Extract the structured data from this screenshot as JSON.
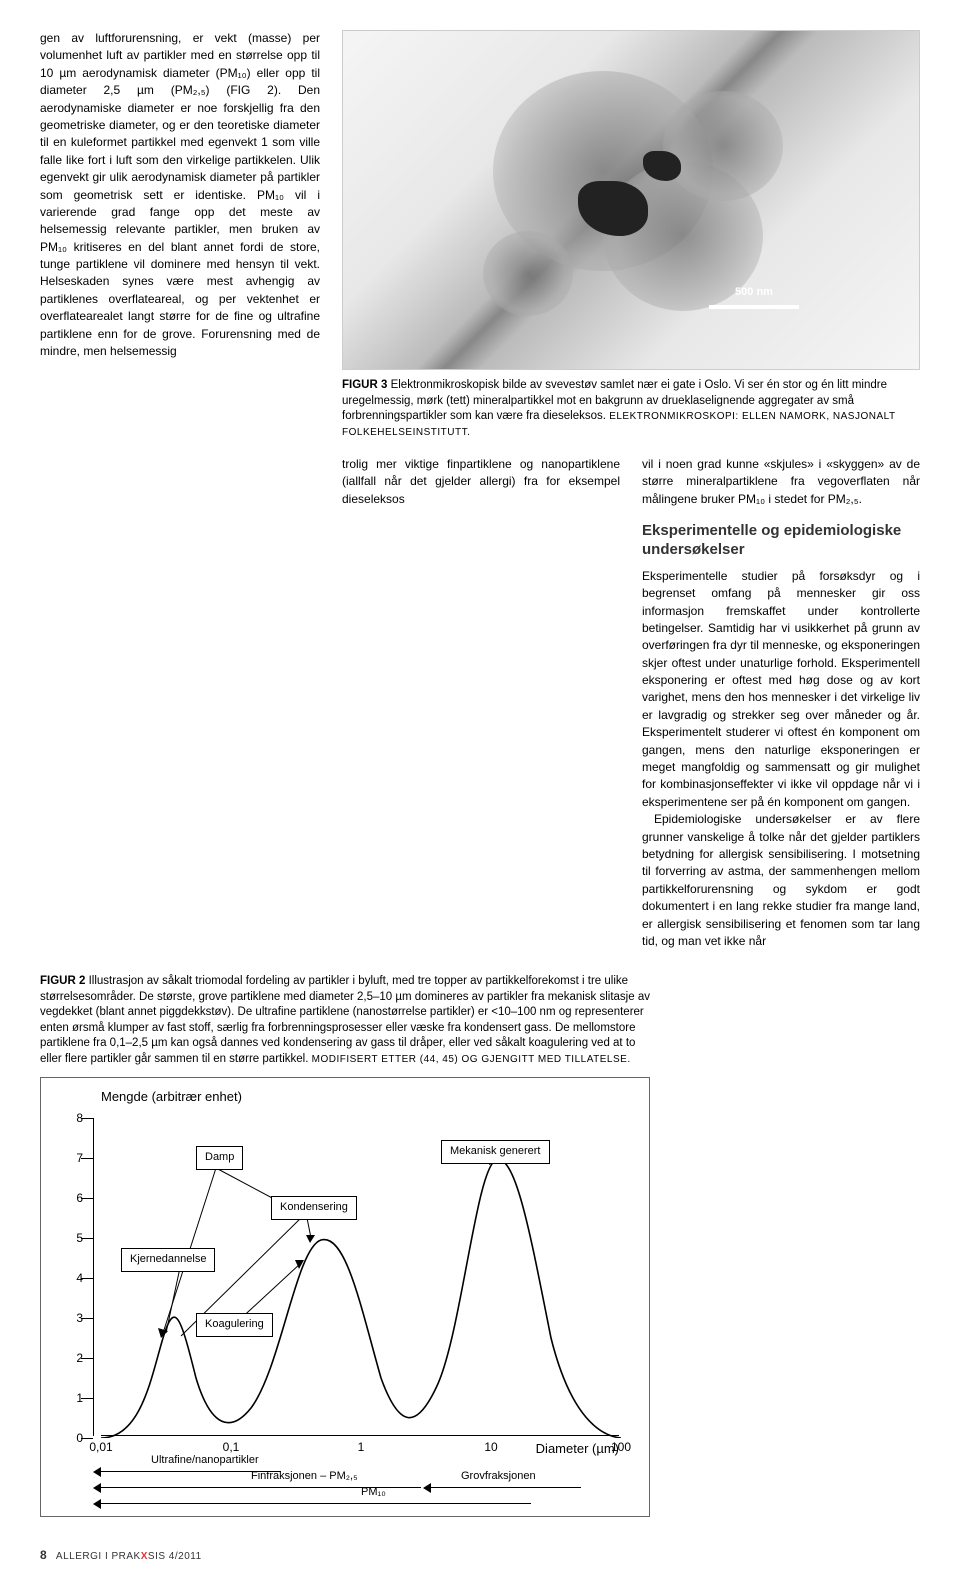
{
  "left_body": "gen av luftforurensning, er vekt (masse) per volumenhet luft av partikler med en størrelse opp til 10 µm aerodynamisk diameter (PM₁₀) eller opp til diameter 2,5 µm (PM₂,₅) (FIG 2). Den aerodynamiske diameter er noe forskjellig fra den geometriske diameter, og er den teoretiske diameter til en kuleformet partikkel med egenvekt 1 som ville falle like fort i luft som den virkelige partikkelen. Ulik egenvekt gir ulik aerodynamisk diameter på partikler som geometrisk sett er identiske. PM₁₀ vil i varierende grad fange opp det meste av helsemessig relevante partikler, men bruken av PM₁₀ kritiseres en del blant annet fordi de store, tunge partiklene vil dominere med hensyn til vekt. Helseskaden synes være mest avhengig av partiklenes overflateareal, og per vektenhet er overflatearealet langt større for de fine og ultrafine partiklene enn for de grove. Forurensning med de mindre, men helsemessig",
  "fig3": {
    "scalebar": "500 nm",
    "caption_lead": "FIGUR 3",
    "caption": " Elektronmikroskopisk bilde av svevestøv samlet nær ei gate i Oslo. Vi ser én stor og én litt mindre uregelmessig, mørk (tett) mineralpartikkel mot en bakgrunn av drueklaselignende aggregater av små forbrenningspartikler som kan være fra dieseleksos. ",
    "credit": "ELEKTRONMIKROSKOPI: ELLEN NAMORK, NASJONALT FOLKEHELSEINSTITUTT."
  },
  "mid_col": "trolig mer viktige finpartiklene og nanopartiklene (iallfall når det gjelder allergi) fra for eksempel dieseleksos",
  "right_col_p1": "vil i noen grad kunne «skjules» i «skyggen» av de større mineralpartiklene fra vegoverflaten når målingene bruker PM₁₀ i stedet for PM₂,₅.",
  "right_heading": "Eksperimentelle og epidemiologiske undersøkelser",
  "right_col_p2": "Eksperimentelle studier på forsøksdyr og i begrenset omfang på mennesker gir oss informasjon fremskaffet under kontrollerte betingelser. Samtidig har vi usikkerhet på grunn av overføringen fra dyr til menneske, og eksponeringen skjer oftest under unaturlige forhold. Eksperimentell eksponering er oftest med høg dose og av kort varighet, mens den hos mennesker i det virkelige liv er lavgradig og strekker seg over måneder og år. Eksperimentelt studerer vi oftest én komponent om gangen, mens den naturlige eksponeringen er meget mangfoldig og sammensatt og gir mulighet for kombinasjonseffekter vi ikke vil oppdage når vi i eksperimentene ser på én komponent om gangen.",
  "right_col_p3": "Epidemiologiske undersøkelser er av flere grunner vanskelige å tolke når det gjelder partiklers betydning for allergisk sensibilisering. I motsetning til forverring av astma, der sammenhengen mellom partikkelforurensning og sykdom er godt dokumentert i en lang rekke studier fra mange land, er allergisk sensibilisering et fenomen som tar lang tid, og man vet ikke når",
  "fig2": {
    "caption_lead": "FIGUR 2",
    "caption": " Illustrasjon av såkalt triomodal fordeling av partikler i byluft, med tre topper av partikkelforekomst i tre ulike størrelsesområder. De største, grove partiklene med diameter 2,5–10 µm domineres av partikler fra mekanisk slitasje av vegdekket (blant annet piggdekkstøv). De ultrafine partiklene (nanostørrelse partikler) er <10–100 nm og representerer enten ørsmå klumper av fast stoff, særlig fra forbrenningsprosesser eller væske fra kondensert gass. De mellomstore partiklene fra 0,1–2,5 µm kan også dannes ved kondensering av gass til dråper, eller ved såkalt koagulering ved at to eller flere partikler går sammen til en større partikkel. ",
    "credit": "MODIFISERT ETTER (44, 45) OG GJENGITT MED TILLATELSE."
  },
  "chart": {
    "type": "trimodal-distribution",
    "y_title": "Mengde (arbitrær enhet)",
    "y_ticks": [
      0,
      1,
      2,
      3,
      4,
      5,
      6,
      7,
      8
    ],
    "x_ticks": [
      "0,01",
      "0,1",
      "1",
      "10",
      "100"
    ],
    "x_title": "Diameter (µm)",
    "labels": {
      "damp": "Damp",
      "kjernedannelse": "Kjernedannelse",
      "koagulering": "Koagulering",
      "kondensering": "Kondensering",
      "mekanisk": "Mekanisk generert"
    },
    "ranges": {
      "ultrafine": "Ultrafine/nanopartikler",
      "fin": "Finfraksjonen – PM₂,₅",
      "pm10": "PM₁₀",
      "grov": "Grovfraksjonen"
    },
    "colors": {
      "line": "#000000",
      "box_border": "#000000",
      "background": "#ffffff"
    },
    "peaks": [
      {
        "x_log": 0.12,
        "height": 0.31
      },
      {
        "x_log": 0.42,
        "height": 0.62
      },
      {
        "x_log": 0.75,
        "height": 0.87
      }
    ],
    "line_width": 1.5
  },
  "footer": {
    "page": "8",
    "journal_a": "ALLERGI I PRAK",
    "journal_x": "X",
    "journal_b": "SIS 4/2011"
  }
}
